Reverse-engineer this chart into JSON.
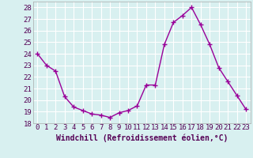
{
  "x": [
    0,
    1,
    2,
    3,
    4,
    5,
    6,
    7,
    8,
    9,
    10,
    11,
    12,
    13,
    14,
    15,
    16,
    17,
    18,
    19,
    20,
    21,
    22,
    23
  ],
  "y": [
    24.0,
    23.0,
    22.5,
    20.3,
    19.4,
    19.1,
    18.8,
    18.7,
    18.5,
    18.9,
    19.1,
    19.5,
    21.3,
    21.3,
    24.8,
    26.7,
    27.3,
    28.0,
    26.5,
    24.8,
    22.8,
    21.6,
    20.4,
    19.2
  ],
  "line_color": "#990099",
  "marker": "+",
  "marker_size": 4,
  "xlabel": "Windchill (Refroidissement éolien,°C)",
  "xlim": [
    -0.5,
    23.5
  ],
  "ylim": [
    18,
    28.5
  ],
  "yticks": [
    18,
    19,
    20,
    21,
    22,
    23,
    24,
    25,
    26,
    27,
    28
  ],
  "xticks": [
    0,
    1,
    2,
    3,
    4,
    5,
    6,
    7,
    8,
    9,
    10,
    11,
    12,
    13,
    14,
    15,
    16,
    17,
    18,
    19,
    20,
    21,
    22,
    23
  ],
  "bg_color": "#d8f0f0",
  "grid_color": "#ffffff",
  "tick_label_fontsize": 6.5,
  "xlabel_fontsize": 7
}
